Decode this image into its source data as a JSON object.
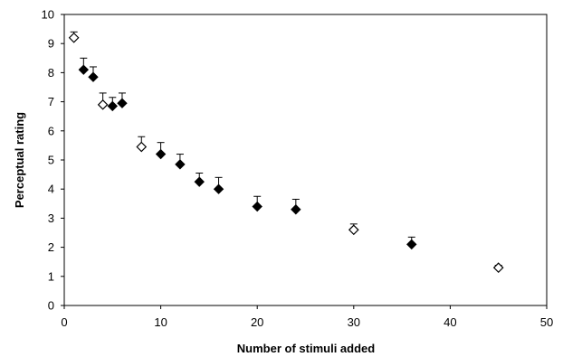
{
  "chart_data": {
    "type": "scatter",
    "title": "",
    "xlabel": "Number of stimuli added",
    "ylabel": "Perceptual rating",
    "xlim": [
      0,
      50
    ],
    "ylim": [
      0,
      10
    ],
    "x_ticks": [
      0,
      10,
      20,
      30,
      40,
      50
    ],
    "y_ticks": [
      0,
      1,
      2,
      3,
      4,
      5,
      6,
      7,
      8,
      9,
      10
    ],
    "grid": false,
    "legend": "none",
    "series": [
      {
        "marker": "diamond-open",
        "points": [
          {
            "x": 1,
            "y": 9.2,
            "err": 0.2
          },
          {
            "x": 4,
            "y": 6.9,
            "err": 0.4
          },
          {
            "x": 8,
            "y": 5.45,
            "err": 0.35
          },
          {
            "x": 30,
            "y": 2.6,
            "err": 0.2
          },
          {
            "x": 45,
            "y": 1.3,
            "err": 0.08
          }
        ]
      },
      {
        "marker": "diamond-filled",
        "points": [
          {
            "x": 2,
            "y": 8.1,
            "err": 0.4
          },
          {
            "x": 3,
            "y": 7.85,
            "err": 0.35
          },
          {
            "x": 5,
            "y": 6.85,
            "err": 0.3
          },
          {
            "x": 6,
            "y": 6.95,
            "err": 0.35
          },
          {
            "x": 10,
            "y": 5.2,
            "err": 0.4
          },
          {
            "x": 12,
            "y": 4.85,
            "err": 0.35
          },
          {
            "x": 14,
            "y": 4.25,
            "err": 0.3
          },
          {
            "x": 16,
            "y": 4.0,
            "err": 0.4
          },
          {
            "x": 20,
            "y": 3.4,
            "err": 0.35
          },
          {
            "x": 24,
            "y": 3.3,
            "err": 0.35
          },
          {
            "x": 36,
            "y": 2.1,
            "err": 0.25
          }
        ]
      }
    ]
  }
}
